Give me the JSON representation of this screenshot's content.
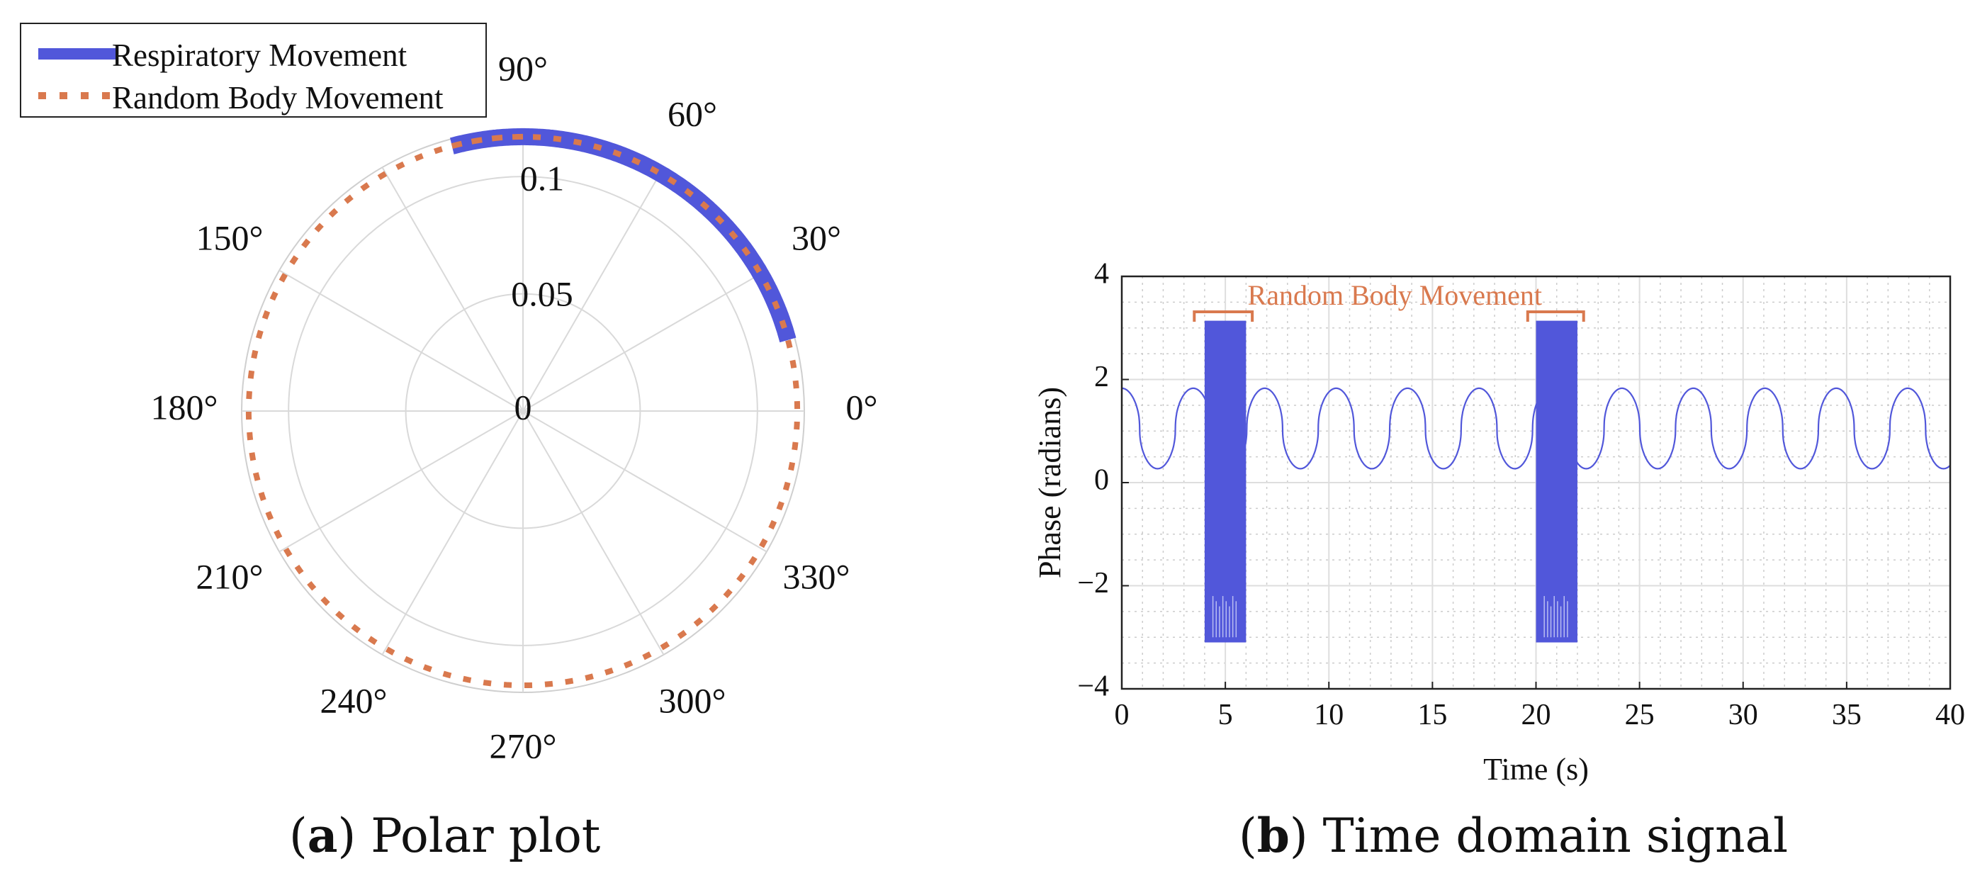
{
  "colors": {
    "respiratory": "#5157DA",
    "random": "#D9794E",
    "grid": "#d9d9d9",
    "text": "#111111"
  },
  "captions": {
    "a": {
      "letter": "a",
      "text": "Polar plot"
    },
    "b": {
      "letter": "b",
      "text": "Time domain signal"
    }
  },
  "chart_data": [
    {
      "type": "polar",
      "panel": "a",
      "title": "Polar plot",
      "r_max": 0.12,
      "r_ticks": [
        0,
        0.05,
        0.1
      ],
      "r_tick_labels": [
        "0",
        "0.05",
        "0.1"
      ],
      "theta_ticks_deg": [
        0,
        30,
        60,
        90,
        120,
        150,
        180,
        210,
        240,
        270,
        300,
        330
      ],
      "theta_tick_labels": [
        "0°",
        "30°",
        "60°",
        "90°",
        "",
        "150°",
        "180°",
        "210°",
        "240°",
        "270°",
        "300°",
        "330°"
      ],
      "legend": {
        "placement": "top-left",
        "entries": [
          "Respiratory Movement",
          "Random Body Movement"
        ]
      },
      "series": [
        {
          "name": "Respiratory Movement",
          "style": "solid",
          "radius": 0.117,
          "theta_start_deg": 15,
          "theta_end_deg": 105
        },
        {
          "name": "Random Body Movement",
          "style": "dotted",
          "radius": 0.117,
          "theta_start_deg": -270,
          "theta_end_deg": 105
        }
      ]
    },
    {
      "type": "line",
      "panel": "b",
      "title": "Time domain signal",
      "xlabel": "Time (s)",
      "ylabel": "Phase (radians)",
      "xlim": [
        0,
        40
      ],
      "ylim": [
        -4,
        4
      ],
      "xticks": [
        0,
        5,
        10,
        15,
        20,
        25,
        30,
        35,
        40
      ],
      "xtick_labels": [
        "0",
        "5",
        "10",
        "15",
        "20",
        "25",
        "30",
        "35",
        "40"
      ],
      "yticks": [
        -4,
        -2,
        0,
        2,
        4
      ],
      "ytick_labels": [
        "−4",
        "−2",
        "0",
        "2",
        "4"
      ],
      "grid": true,
      "annotation": {
        "text": "Random Body Movement",
        "brackets": [
          [
            3.5,
            6.3
          ],
          [
            19.6,
            22.3
          ]
        ]
      },
      "series": [
        {
          "name": "Respiratory phase",
          "kind": "periodic",
          "center": 1.05,
          "amplitude": 0.78,
          "period": 3.45,
          "max": 1.83,
          "min": 0.27
        },
        {
          "name": "Random Body Movement bursts",
          "kind": "burst",
          "intervals": [
            [
              4.0,
              6.0
            ],
            [
              20.0,
              22.0
            ]
          ],
          "range": [
            -3.1,
            3.14
          ]
        }
      ]
    }
  ]
}
